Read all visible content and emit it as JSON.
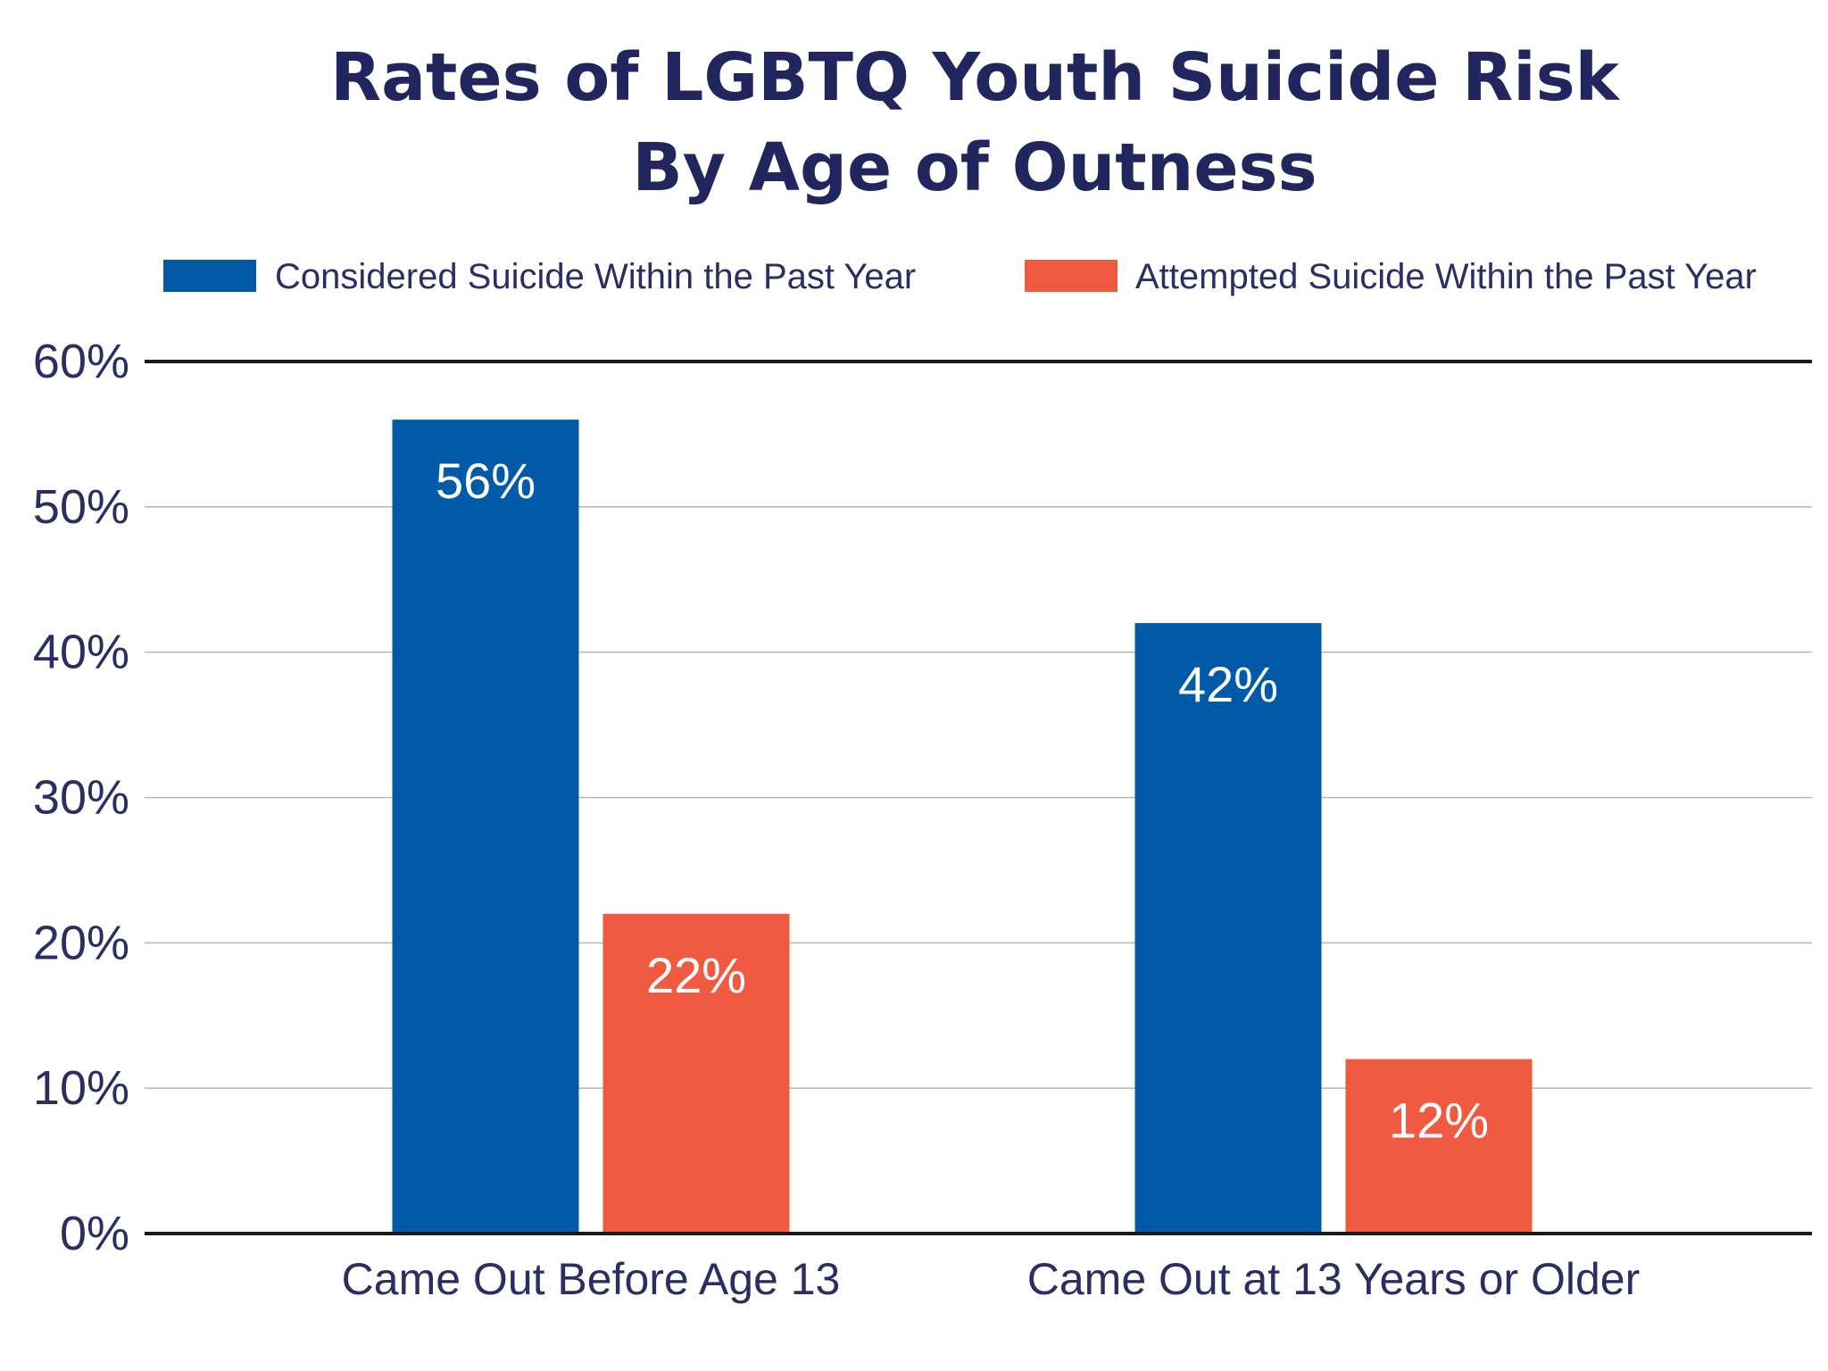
{
  "chart_data": {
    "type": "bar",
    "title": "Rates of LGBTQ Youth Suicide Risk",
    "subtitle": "By Age of Outness",
    "categories": [
      "Came Out Before Age 13",
      "Came Out at 13 Years or Older"
    ],
    "series": [
      {
        "name": "Considered Suicide Within the Past Year",
        "color": "#005aa8",
        "values": [
          56,
          42
        ],
        "labels": [
          "56%",
          "42%"
        ]
      },
      {
        "name": "Attempted Suicide Within the Past Year",
        "color": "#f05a40",
        "values": [
          22,
          12
        ],
        "labels": [
          "22%",
          "12%"
        ]
      }
    ],
    "ylim": [
      0,
      60
    ],
    "yticks": [
      0,
      10,
      20,
      30,
      40,
      50,
      60
    ],
    "ytick_labels": [
      "0%",
      "10%",
      "20%",
      "30%",
      "40%",
      "50%",
      "60%"
    ],
    "xlabel": "",
    "ylabel": "",
    "grid": true,
    "legend_position": "top"
  }
}
